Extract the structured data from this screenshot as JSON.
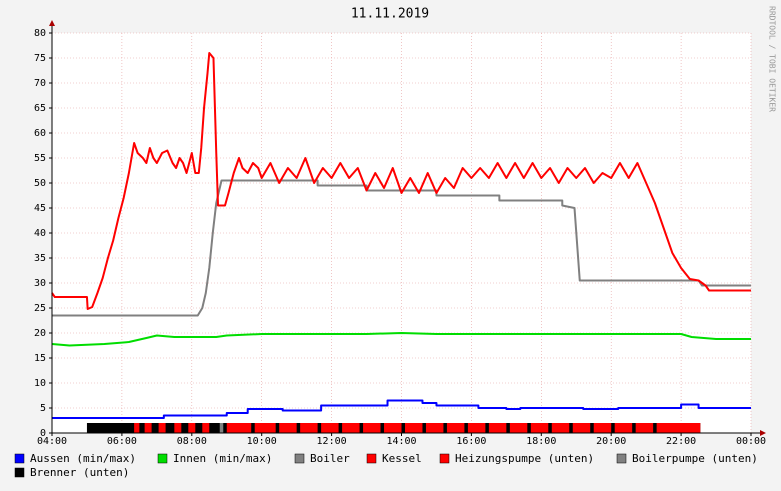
{
  "chart_data": {
    "type": "line",
    "title": "11.11.2019",
    "watermark": "RRDTOOL / TOBI OETIKER",
    "xlim": [
      4,
      24
    ],
    "xticks": [
      {
        "value": 4,
        "label": "04:00"
      },
      {
        "value": 6,
        "label": "06:00"
      },
      {
        "value": 8,
        "label": "08:00"
      },
      {
        "value": 10,
        "label": "10:00"
      },
      {
        "value": 12,
        "label": "12:00"
      },
      {
        "value": 14,
        "label": "14:00"
      },
      {
        "value": 16,
        "label": "16:00"
      },
      {
        "value": 18,
        "label": "18:00"
      },
      {
        "value": 20,
        "label": "20:00"
      },
      {
        "value": 22,
        "label": "22:00"
      },
      {
        "value": 24,
        "label": "00:00"
      }
    ],
    "ylim": [
      0,
      80
    ],
    "yticks": [
      0,
      5,
      10,
      15,
      20,
      25,
      30,
      35,
      40,
      45,
      50,
      55,
      60,
      65,
      70,
      75,
      80
    ],
    "grid": true,
    "series": [
      {
        "name": "Aussen (min/max)",
        "color": "#0000ff",
        "kind": "line",
        "x": [
          4,
          7.2,
          7.2,
          9.0,
          9.0,
          9.6,
          9.6,
          10.6,
          10.6,
          11.7,
          11.7,
          13.6,
          13.6,
          14.6,
          14.6,
          15.0,
          15.0,
          16.2,
          16.2,
          17.0,
          17.0,
          17.4,
          17.4,
          19.2,
          19.2,
          20.2,
          20.2,
          22.0,
          22.0,
          22.5,
          22.5,
          24
        ],
        "values": [
          3,
          3,
          3.5,
          3.5,
          4,
          4,
          4.8,
          4.8,
          4.5,
          4.5,
          5.5,
          5.5,
          6.5,
          6.5,
          6,
          6,
          5.5,
          5.5,
          5,
          5,
          4.8,
          4.8,
          5,
          5,
          4.8,
          4.8,
          5,
          5,
          5.7,
          5.7,
          5,
          5
        ]
      },
      {
        "name": "Innen (min/max)",
        "color": "#00dd00",
        "kind": "line",
        "x": [
          4,
          4.5,
          5.5,
          6.2,
          6.7,
          7.0,
          7.5,
          8.7,
          9.0,
          10.0,
          13.0,
          14.0,
          15.0,
          22.0,
          22.3,
          23.0,
          24
        ],
        "values": [
          17.8,
          17.5,
          17.8,
          18.2,
          19,
          19.5,
          19.2,
          19.2,
          19.5,
          19.8,
          19.8,
          20,
          19.8,
          19.8,
          19.2,
          18.8,
          18.8
        ]
      },
      {
        "name": "Boiler",
        "color": "#808080",
        "kind": "line",
        "x": [
          4,
          8.17,
          8.3,
          8.4,
          8.5,
          8.6,
          8.7,
          8.85,
          11.6,
          11.6,
          13.0,
          13.0,
          15.0,
          15.0,
          16.8,
          16.8,
          18.6,
          18.6,
          18.95,
          19.1,
          22.5,
          22.6,
          24
        ],
        "values": [
          23.5,
          23.5,
          25,
          28,
          33,
          40,
          46,
          50.5,
          50.5,
          49.5,
          49.5,
          48.5,
          48.5,
          47.5,
          47.5,
          46.5,
          46.5,
          45.5,
          45,
          30.5,
          30.5,
          29.5,
          29.5
        ]
      },
      {
        "name": "Kessel",
        "color": "#ff0000",
        "kind": "line",
        "x": [
          4,
          4.08,
          5.0,
          5.02,
          5.15,
          5.3,
          5.45,
          5.6,
          5.75,
          5.9,
          6.05,
          6.2,
          6.3,
          6.35,
          6.45,
          6.6,
          6.7,
          6.8,
          6.9,
          7.0,
          7.15,
          7.3,
          7.45,
          7.55,
          7.65,
          7.75,
          7.85,
          8.0,
          8.1,
          8.2,
          8.27,
          8.35,
          8.45,
          8.5,
          8.62,
          8.7,
          8.75,
          8.95,
          9.05,
          9.2,
          9.35,
          9.45,
          9.6,
          9.75,
          9.9,
          10.0,
          10.25,
          10.5,
          10.75,
          11.0,
          11.25,
          11.5,
          11.75,
          12.0,
          12.25,
          12.5,
          12.75,
          13.0,
          13.25,
          13.5,
          13.75,
          14.0,
          14.25,
          14.5,
          14.75,
          15.0,
          15.25,
          15.5,
          15.75,
          16.0,
          16.25,
          16.5,
          16.75,
          17.0,
          17.25,
          17.5,
          17.75,
          18.0,
          18.25,
          18.5,
          18.75,
          19.0,
          19.25,
          19.5,
          19.75,
          20.0,
          20.25,
          20.5,
          20.75,
          21.0,
          21.25,
          21.5,
          21.75,
          22.0,
          22.25,
          22.5,
          22.7,
          22.8,
          24
        ],
        "values": [
          28,
          27.2,
          27.2,
          24.8,
          25.2,
          28,
          31,
          35,
          38.5,
          43,
          47,
          52,
          56,
          58,
          56,
          55,
          54,
          57,
          55,
          54,
          56,
          56.5,
          54,
          53,
          55,
          54,
          52,
          56,
          52,
          52,
          57,
          65,
          72,
          76,
          75,
          56,
          45.5,
          45.5,
          48,
          52,
          55,
          53,
          52,
          54,
          53,
          51,
          54,
          50,
          53,
          51,
          55,
          50,
          53,
          51,
          54,
          51,
          53,
          48.5,
          52,
          49,
          53,
          48,
          51,
          48,
          52,
          48,
          51,
          49,
          53,
          51,
          53,
          51,
          54,
          51,
          54,
          51,
          54,
          51,
          53,
          50,
          53,
          51,
          53,
          50,
          52,
          51,
          54,
          51,
          54,
          50,
          46,
          41,
          36,
          33,
          30.8,
          30.5,
          29.5,
          28.5,
          28.5
        ]
      },
      {
        "name": "Heizungspumpe (unten)",
        "color": "#ff0000",
        "kind": "band",
        "intervals": [
          [
            6.35,
            6.5
          ],
          [
            6.65,
            6.85
          ],
          [
            7.05,
            7.25
          ],
          [
            7.5,
            7.7
          ],
          [
            7.9,
            8.1
          ],
          [
            8.3,
            8.5
          ],
          [
            9.0,
            9.7
          ],
          [
            9.8,
            10.4
          ],
          [
            10.5,
            11.0
          ],
          [
            11.1,
            11.6
          ],
          [
            11.7,
            12.2
          ],
          [
            12.3,
            12.8
          ],
          [
            12.9,
            13.4
          ],
          [
            13.5,
            14.0
          ],
          [
            14.1,
            14.6
          ],
          [
            14.7,
            15.2
          ],
          [
            15.3,
            15.8
          ],
          [
            15.9,
            16.4
          ],
          [
            16.5,
            17.0
          ],
          [
            17.1,
            17.6
          ],
          [
            17.7,
            18.2
          ],
          [
            18.3,
            18.8
          ],
          [
            18.9,
            19.4
          ],
          [
            19.5,
            20.0
          ],
          [
            20.1,
            20.6
          ],
          [
            20.7,
            21.2
          ],
          [
            21.3,
            22.55
          ]
        ]
      },
      {
        "name": "Boilerpumpe (unten)",
        "color": "#808080",
        "kind": "band",
        "intervals": [
          [
            8.8,
            8.9
          ]
        ]
      },
      {
        "name": "Brenner (unten)",
        "color": "#000000",
        "kind": "band",
        "intervals": [
          [
            5.0,
            22.55
          ]
        ]
      }
    ]
  }
}
